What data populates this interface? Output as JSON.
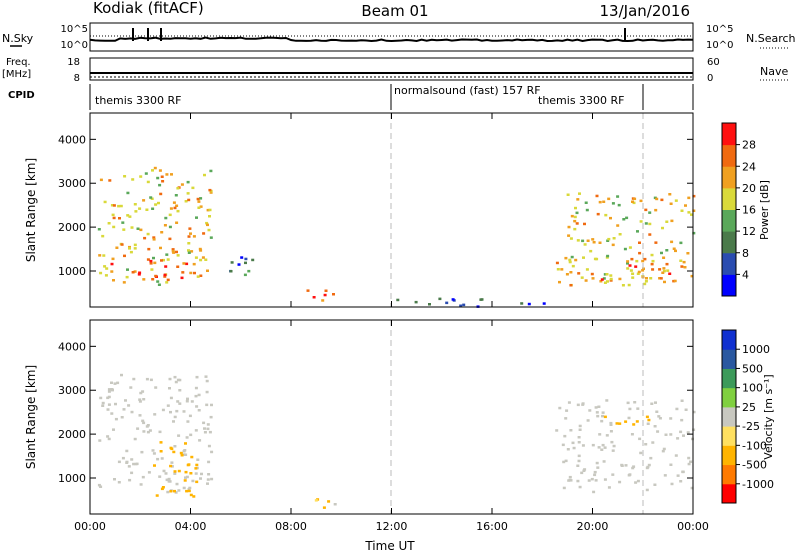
{
  "header": {
    "radar": "Kodiak (fitACF)",
    "beam": "Beam 01",
    "date": "13/Jan/2016"
  },
  "panels": {
    "nsky": {
      "left_label": "N.Sky",
      "right_label": "N.Search",
      "left_ticks": [
        "10^5",
        "10^0"
      ],
      "right_ticks": [
        "10^5",
        "10^0"
      ]
    },
    "freq": {
      "left_label_1": "Freq.",
      "left_label_2": "[MHz]",
      "right_label": "Nave",
      "left_ticks": [
        "18",
        "8"
      ],
      "right_ticks": [
        "60",
        "0"
      ]
    },
    "cpid": {
      "label": "CPID",
      "segments": [
        {
          "text": "themis 3300 RF",
          "start_hour": 0
        },
        {
          "text": "normalsound (fast) 157 RF",
          "start_hour": 12
        },
        {
          "text": "themis 3300 RF",
          "start_hour": 22
        }
      ]
    }
  },
  "colors": {
    "power": [
      "#0000ff",
      "#2a4cb0",
      "#4a7a4a",
      "#5aa85a",
      "#d9d93a",
      "#f0a020",
      "#f06a10",
      "#ff1010"
    ],
    "velocity": [
      "#ff0000",
      "#ff7a00",
      "#ffb400",
      "#ffe060",
      "#c8c8c0",
      "#80d040",
      "#3c9a5a",
      "#2a58a0",
      "#1030d0"
    ]
  },
  "chart_data": [
    {
      "type": "heatmap",
      "name": "power",
      "title": "Beam 01",
      "xlabel": "",
      "ylabel": "Slant Range [km]",
      "xlim": [
        0,
        24
      ],
      "ylim": [
        180,
        4600
      ],
      "x_tick_labels": [
        "00:00",
        "04:00",
        "08:00",
        "12:00",
        "16:00",
        "20:00",
        "00:00"
      ],
      "y_ticks": [
        1000,
        2000,
        3000,
        4000
      ],
      "colorbar": {
        "label": "Power [dB]",
        "ticks": [
          "28",
          "24",
          "20",
          "16",
          "12",
          "8",
          "4"
        ],
        "range": [
          0,
          32
        ]
      },
      "echo_regions": [
        {
          "t": [
            0.3,
            4.8
          ],
          "r": [
            700,
            3400
          ],
          "value_db": 20
        },
        {
          "t": [
            0.3,
            3.8
          ],
          "r": [
            800,
            1300
          ],
          "value_db": 27
        },
        {
          "t": [
            5.5,
            6.5
          ],
          "r": [
            900,
            1500
          ],
          "value_db": 8
        },
        {
          "t": [
            8.5,
            10.0
          ],
          "r": [
            350,
            600
          ],
          "value_db": 28
        },
        {
          "t": [
            12.0,
            18.5
          ],
          "r": [
            200,
            400
          ],
          "value_db": 6
        },
        {
          "t": [
            18.5,
            24.0
          ],
          "r": [
            700,
            2800
          ],
          "value_db": 20
        },
        {
          "t": [
            19.5,
            24.0
          ],
          "r": [
            800,
            1300
          ],
          "value_db": 24
        }
      ]
    },
    {
      "type": "heatmap",
      "name": "velocity",
      "xlabel": "Time UT",
      "ylabel": "Slant Range [km]",
      "xlim": [
        0,
        24
      ],
      "ylim": [
        180,
        4600
      ],
      "x_tick_labels": [
        "00:00",
        "04:00",
        "08:00",
        "12:00",
        "16:00",
        "20:00",
        "00:00"
      ],
      "y_ticks": [
        1000,
        2000,
        3000,
        4000
      ],
      "colorbar": {
        "label": "Velocity [m s⁻¹]",
        "ticks": [
          "1000",
          "500",
          "100",
          "25",
          "-25",
          "-100",
          "-500",
          "-1000"
        ]
      },
      "echo_regions": [
        {
          "t": [
            0.3,
            4.8
          ],
          "r": [
            700,
            3400
          ],
          "value_ms": 0
        },
        {
          "t": [
            2.5,
            4.2
          ],
          "r": [
            600,
            2000
          ],
          "value_ms": -300
        },
        {
          "t": [
            8.5,
            10.0
          ],
          "r": [
            350,
            600
          ],
          "value_ms": -150
        },
        {
          "t": [
            18.5,
            24.0
          ],
          "r": [
            700,
            2800
          ],
          "value_ms": 0
        },
        {
          "t": [
            20.0,
            22.5
          ],
          "r": [
            2200,
            2500
          ],
          "value_ms": -300
        }
      ]
    }
  ]
}
